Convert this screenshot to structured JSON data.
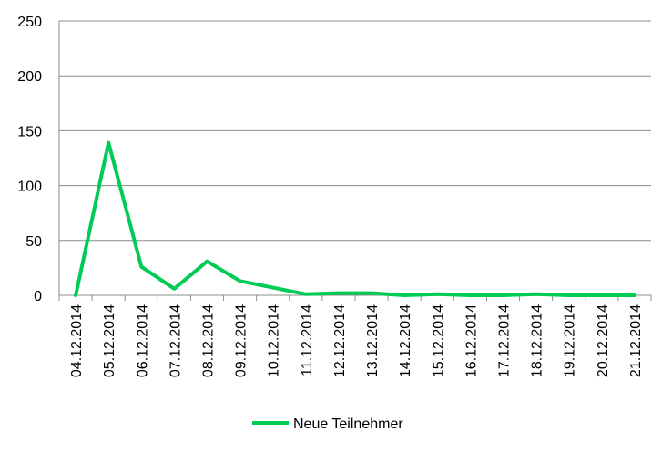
{
  "chart_data": {
    "type": "line",
    "x": [
      "04.12.2014",
      "05.12.2014",
      "06.12.2014",
      "07.12.2014",
      "08.12.2014",
      "09.12.2014",
      "10.12.2014",
      "11.12.2014",
      "12.12.2014",
      "13.12.2014",
      "14.12.2014",
      "15.12.2014",
      "16.12.2014",
      "17.12.2014",
      "18.12.2014",
      "19.12.2014",
      "20.12.2014",
      "21.12.2014"
    ],
    "series": [
      {
        "name": "Neue Teilnehmer",
        "color": "#00cc55",
        "values": [
          0,
          139,
          26,
          6,
          31,
          13,
          7,
          1,
          2,
          2,
          0,
          1,
          0,
          0,
          1,
          0,
          0,
          0
        ]
      }
    ],
    "ylim": [
      0,
      250
    ],
    "yticks": [
      "0",
      "50",
      "100",
      "150",
      "200",
      "250"
    ],
    "grid": true,
    "legend": "bottom",
    "title": "",
    "xlabel": "",
    "ylabel": ""
  }
}
